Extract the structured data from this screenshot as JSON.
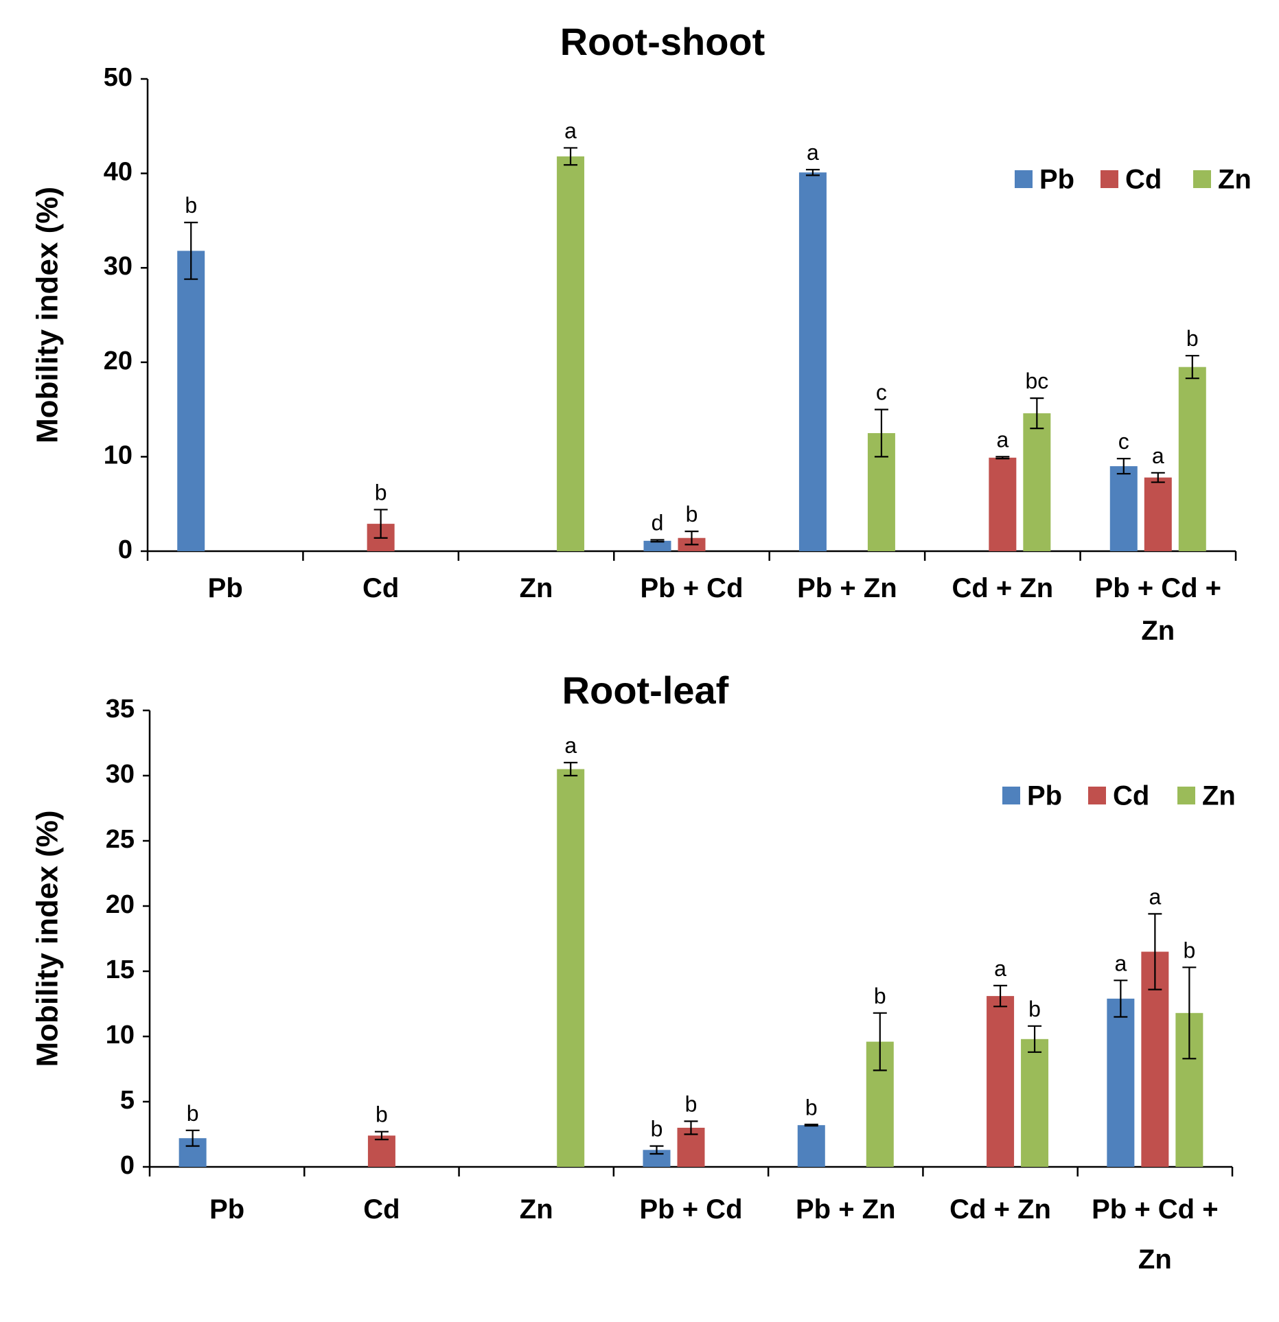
{
  "chart_data": [
    {
      "type": "bar",
      "title": "Root-shoot",
      "ylabel": "Mobility index (%)",
      "xlabel": "",
      "ylim": [
        0,
        50
      ],
      "yticks": [
        0,
        10,
        20,
        30,
        40,
        50
      ],
      "legend_position": "top-right",
      "categories": [
        [
          "Pb"
        ],
        [
          "Cd"
        ],
        [
          "Zn"
        ],
        [
          "Pb + Cd"
        ],
        [
          "Pb + Zn"
        ],
        [
          "Cd + Zn"
        ],
        [
          "Pb + Cd +",
          "Zn"
        ]
      ],
      "series": [
        {
          "name": "Pb",
          "color": "#4f81bd",
          "values": [
            31.8,
            null,
            null,
            1.1,
            40.1,
            null,
            9.0
          ],
          "errors": [
            3.0,
            null,
            null,
            0.1,
            0.3,
            null,
            0.8
          ],
          "labels": [
            "b",
            null,
            null,
            "d",
            "a",
            null,
            "c"
          ]
        },
        {
          "name": "Cd",
          "color": "#c0504d",
          "values": [
            null,
            2.9,
            null,
            1.4,
            null,
            9.9,
            7.8
          ],
          "errors": [
            null,
            1.5,
            null,
            0.7,
            null,
            0.1,
            0.5
          ],
          "labels": [
            null,
            "b",
            null,
            "b",
            null,
            "a",
            "a"
          ]
        },
        {
          "name": "Zn",
          "color": "#9bbb59",
          "values": [
            null,
            null,
            41.8,
            null,
            12.5,
            14.6,
            19.5
          ],
          "errors": [
            null,
            null,
            0.9,
            null,
            2.5,
            1.6,
            1.2
          ],
          "labels": [
            null,
            null,
            "a",
            null,
            "c",
            "bc",
            "b"
          ]
        }
      ]
    },
    {
      "type": "bar",
      "title": "Root-leaf",
      "ylabel": "Mobility index (%)",
      "xlabel": "",
      "ylim": [
        0,
        35
      ],
      "yticks": [
        0,
        5,
        10,
        15,
        20,
        25,
        30,
        35
      ],
      "legend_position": "top-right",
      "categories": [
        [
          "Pb"
        ],
        [
          "Cd"
        ],
        [
          "Zn"
        ],
        [
          "Pb + Cd"
        ],
        [
          "Pb + Zn"
        ],
        [
          "Cd + Zn"
        ],
        [
          "Pb + Cd +",
          "Zn"
        ]
      ],
      "series": [
        {
          "name": "Pb",
          "color": "#4f81bd",
          "values": [
            2.2,
            null,
            null,
            1.3,
            3.2,
            null,
            12.9
          ],
          "errors": [
            0.6,
            null,
            null,
            0.3,
            0.05,
            null,
            1.4
          ],
          "labels": [
            "b",
            null,
            null,
            "b",
            "b",
            null,
            "a"
          ]
        },
        {
          "name": "Cd",
          "color": "#c0504d",
          "values": [
            null,
            2.4,
            null,
            3.0,
            null,
            13.1,
            16.5
          ],
          "errors": [
            null,
            0.3,
            null,
            0.5,
            null,
            0.8,
            2.9
          ],
          "labels": [
            null,
            "b",
            null,
            "b",
            null,
            "a",
            "a"
          ]
        },
        {
          "name": "Zn",
          "color": "#9bbb59",
          "values": [
            null,
            null,
            30.5,
            null,
            9.6,
            9.8,
            11.8
          ],
          "errors": [
            null,
            null,
            0.5,
            null,
            2.2,
            1.0,
            3.5
          ],
          "labels": [
            null,
            null,
            "a",
            null,
            "b",
            "b",
            "b"
          ]
        }
      ]
    }
  ]
}
